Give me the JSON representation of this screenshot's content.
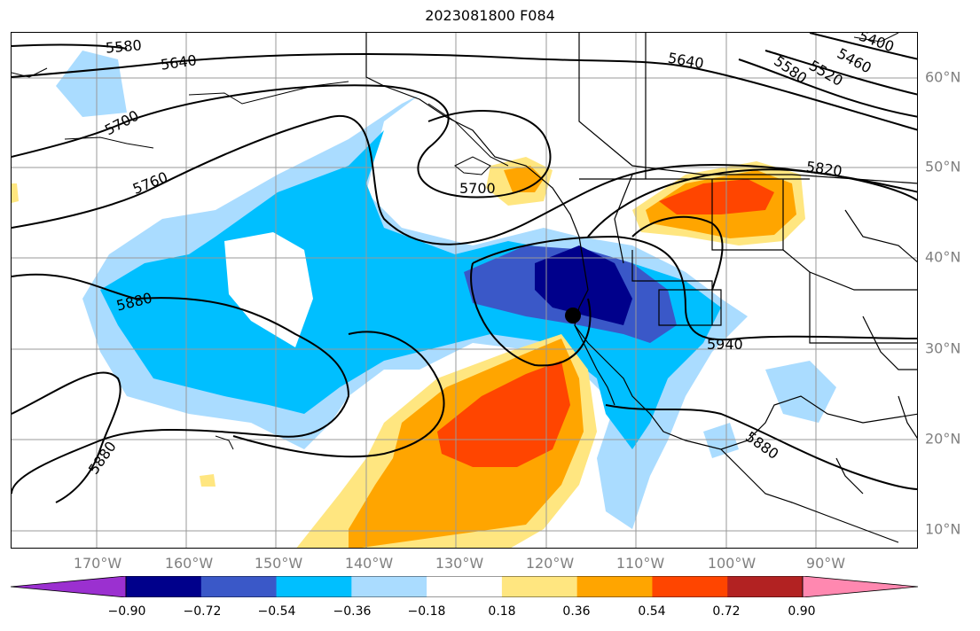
{
  "title": "2023081800 F084",
  "map": {
    "lon_ticks": [
      "170°W",
      "160°W",
      "150°W",
      "140°W",
      "130°W",
      "120°W",
      "110°W",
      "100°W",
      "90°W"
    ],
    "lat_ticks": [
      "60°N",
      "50°N",
      "40°N",
      "30°N",
      "20°N",
      "10°N"
    ],
    "contour_labels": [
      "5580",
      "5640",
      "5700",
      "5760",
      "5880",
      "5880",
      "5880",
      "5700",
      "5640",
      "5580",
      "5520",
      "5460",
      "5400",
      "5820",
      "5940"
    ],
    "marker": "storm-center-dot"
  },
  "colorbar": {
    "ticks": [
      "−0.90",
      "−0.72",
      "−0.54",
      "−0.36",
      "−0.18",
      "0.18",
      "0.36",
      "0.54",
      "0.72",
      "0.90"
    ],
    "colors": [
      "#9b30d0",
      "#00008b",
      "#3a58c8",
      "#00bfff",
      "#aadcff",
      "#ffffff",
      "#ffe680",
      "#ffa500",
      "#ff4500",
      "#b22222",
      "#ff88b0"
    ]
  }
}
